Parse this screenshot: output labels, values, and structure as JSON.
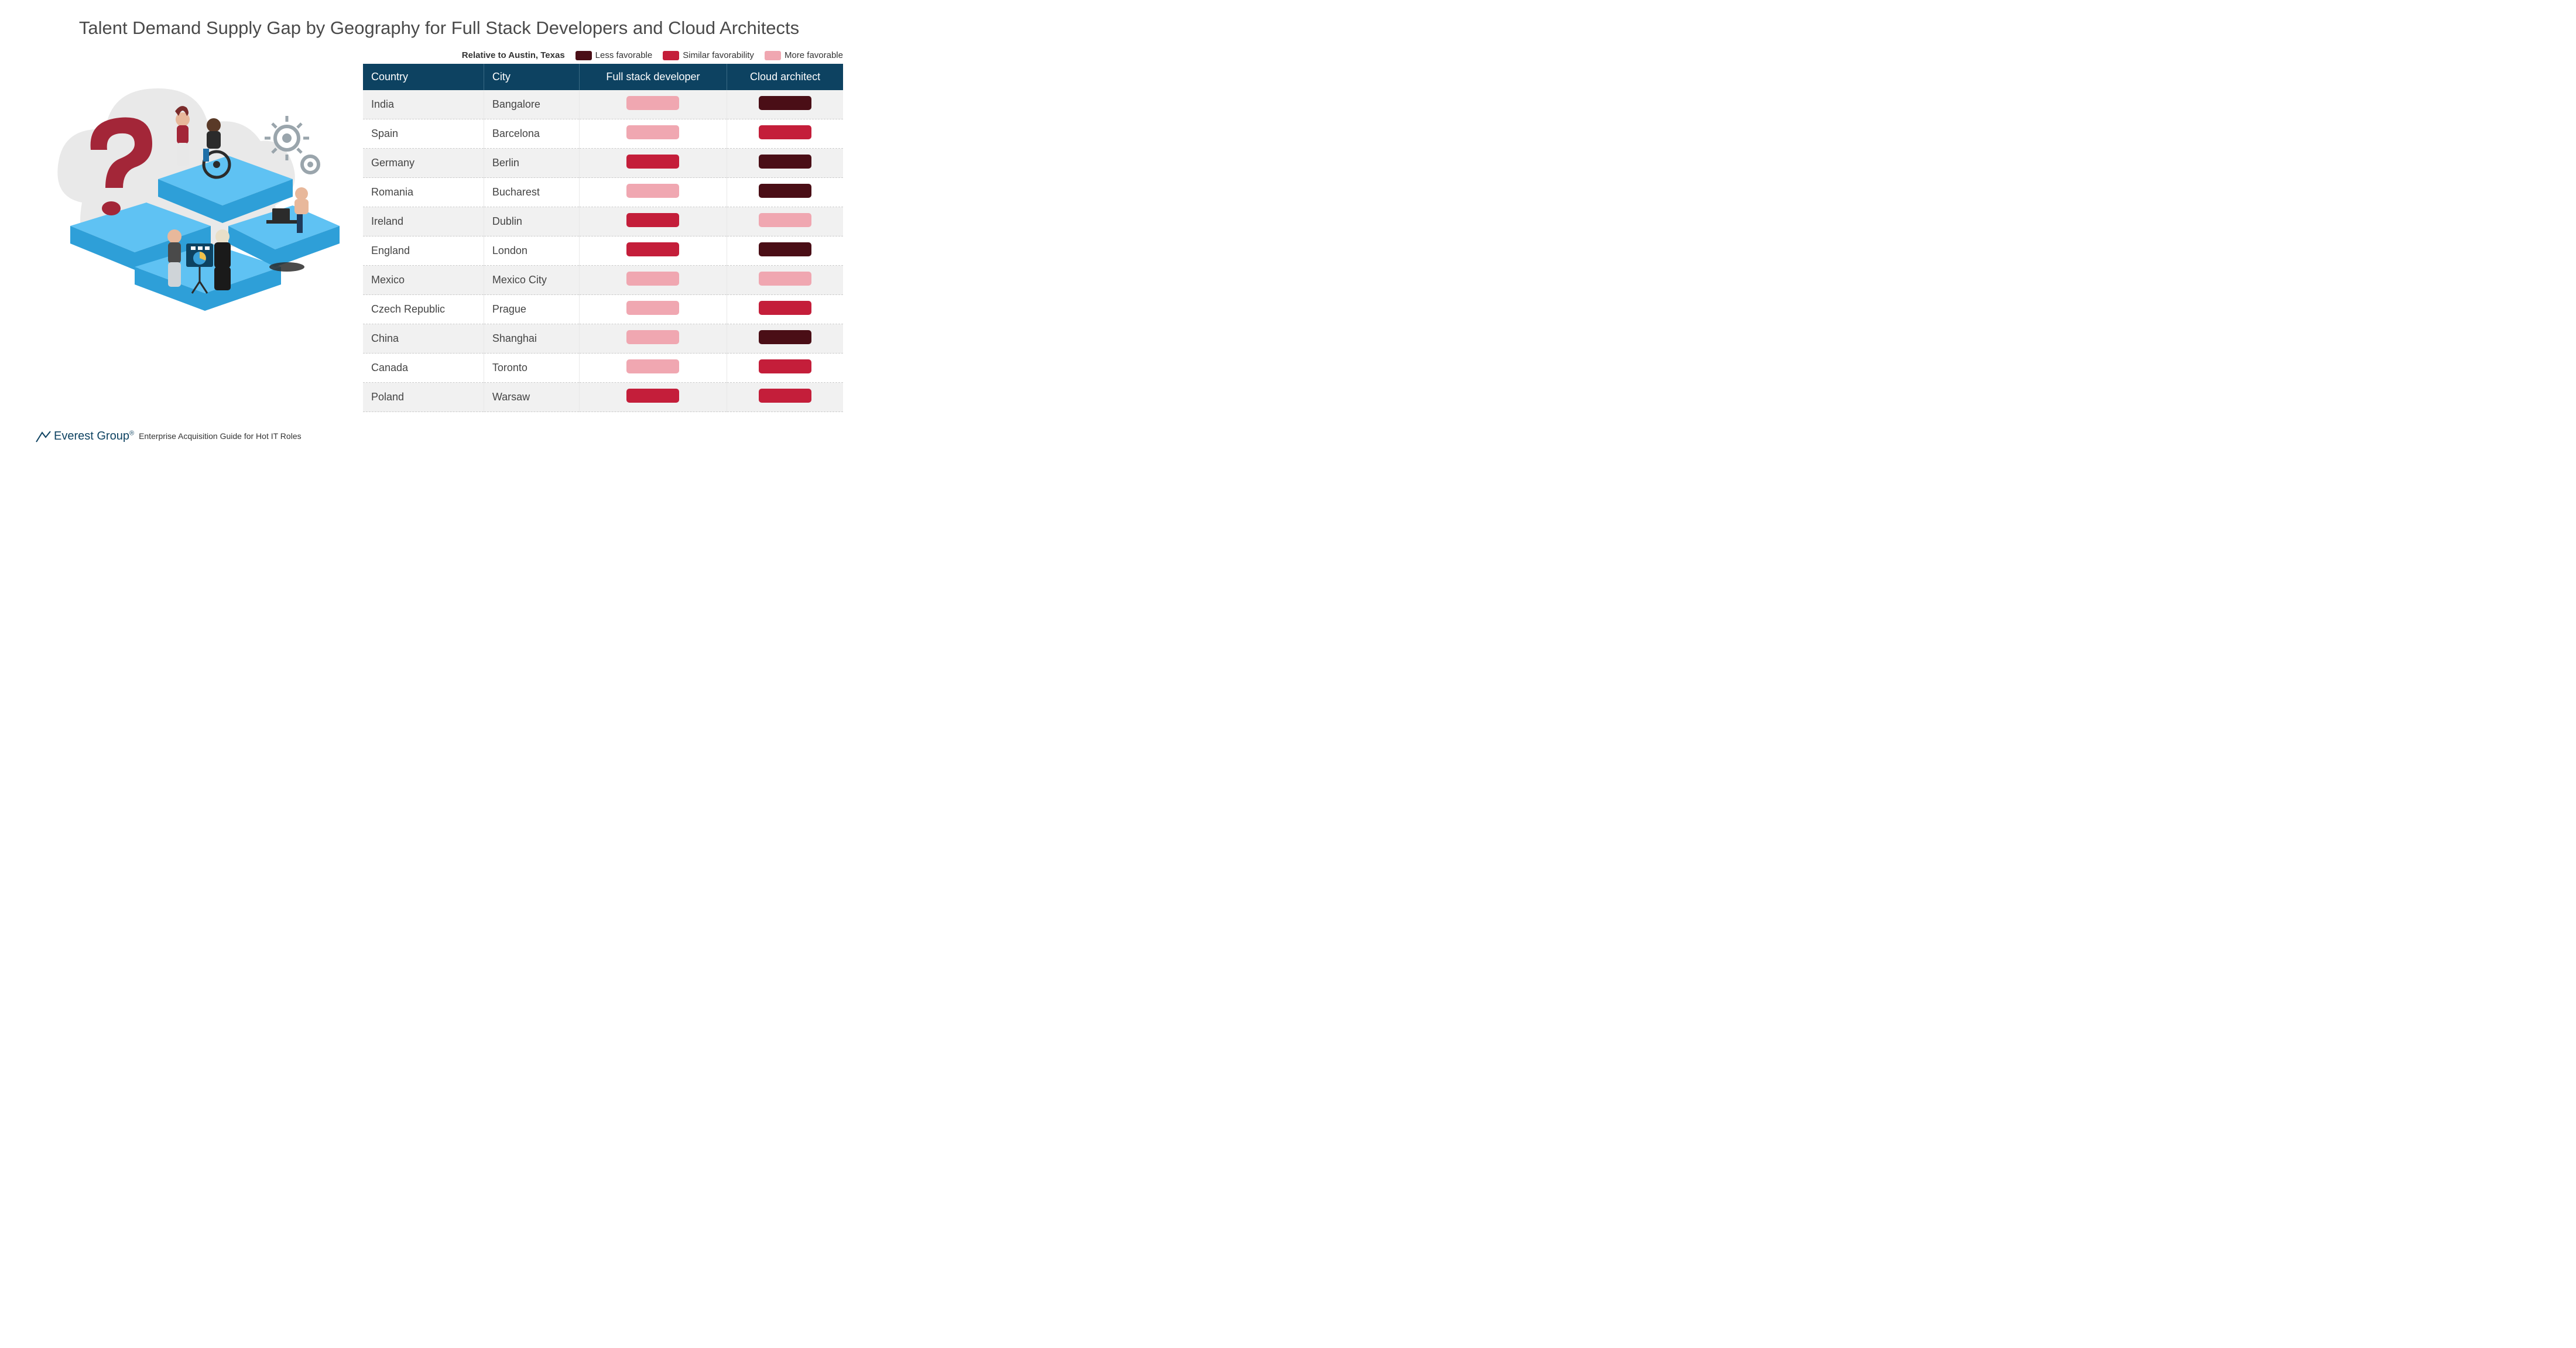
{
  "title": "Talent Demand Supply Gap by Geography for Full Stack Developers and Cloud Architects",
  "legend": {
    "title": "Relative to Austin, Texas",
    "items": [
      {
        "label": "Less favorable",
        "color": "#4a0e16"
      },
      {
        "label": "Similar favorability",
        "color": "#c41e3a"
      },
      {
        "label": "More favorable",
        "color": "#f0a7b1"
      }
    ]
  },
  "colors": {
    "less_favorable": "#4a0e16",
    "similar": "#c41e3a",
    "more_favorable": "#f0a7b1",
    "header_bg": "#0d4261",
    "header_text": "#ffffff",
    "row_odd": "#f1f1f1",
    "row_even": "#ffffff",
    "text": "#444444",
    "title_text": "#4a4a4a"
  },
  "table": {
    "columns": [
      "Country",
      "City",
      "Full stack developer",
      "Cloud architect"
    ],
    "rows": [
      {
        "country": "India",
        "city": "Bangalore",
        "fsd": "more_favorable",
        "ca": "less_favorable"
      },
      {
        "country": "Spain",
        "city": "Barcelona",
        "fsd": "more_favorable",
        "ca": "similar"
      },
      {
        "country": "Germany",
        "city": "Berlin",
        "fsd": "similar",
        "ca": "less_favorable"
      },
      {
        "country": "Romania",
        "city": "Bucharest",
        "fsd": "more_favorable",
        "ca": "less_favorable"
      },
      {
        "country": "Ireland",
        "city": "Dublin",
        "fsd": "similar",
        "ca": "more_favorable"
      },
      {
        "country": "England",
        "city": "London",
        "fsd": "similar",
        "ca": "less_favorable"
      },
      {
        "country": "Mexico",
        "city": "Mexico City",
        "fsd": "more_favorable",
        "ca": "more_favorable"
      },
      {
        "country": "Czech Republic",
        "city": "Prague",
        "fsd": "more_favorable",
        "ca": "similar"
      },
      {
        "country": "China",
        "city": "Shanghai",
        "fsd": "more_favorable",
        "ca": "less_favorable"
      },
      {
        "country": "Canada",
        "city": "Toronto",
        "fsd": "more_favorable",
        "ca": "similar"
      },
      {
        "country": "Poland",
        "city": "Warsaw",
        "fsd": "similar",
        "ca": "similar"
      }
    ]
  },
  "footer": {
    "brand": "Everest Group",
    "reg": "®",
    "tagline": "Enterprise Acquisition Guide for Hot IT Roles"
  },
  "illustration": {
    "cloud_color": "#e9e9e9",
    "puzzle_top": "#5fc2f3",
    "puzzle_side": "#2e9fd8",
    "question_color": "#a32638",
    "gear_color": "#9aa5ac"
  }
}
